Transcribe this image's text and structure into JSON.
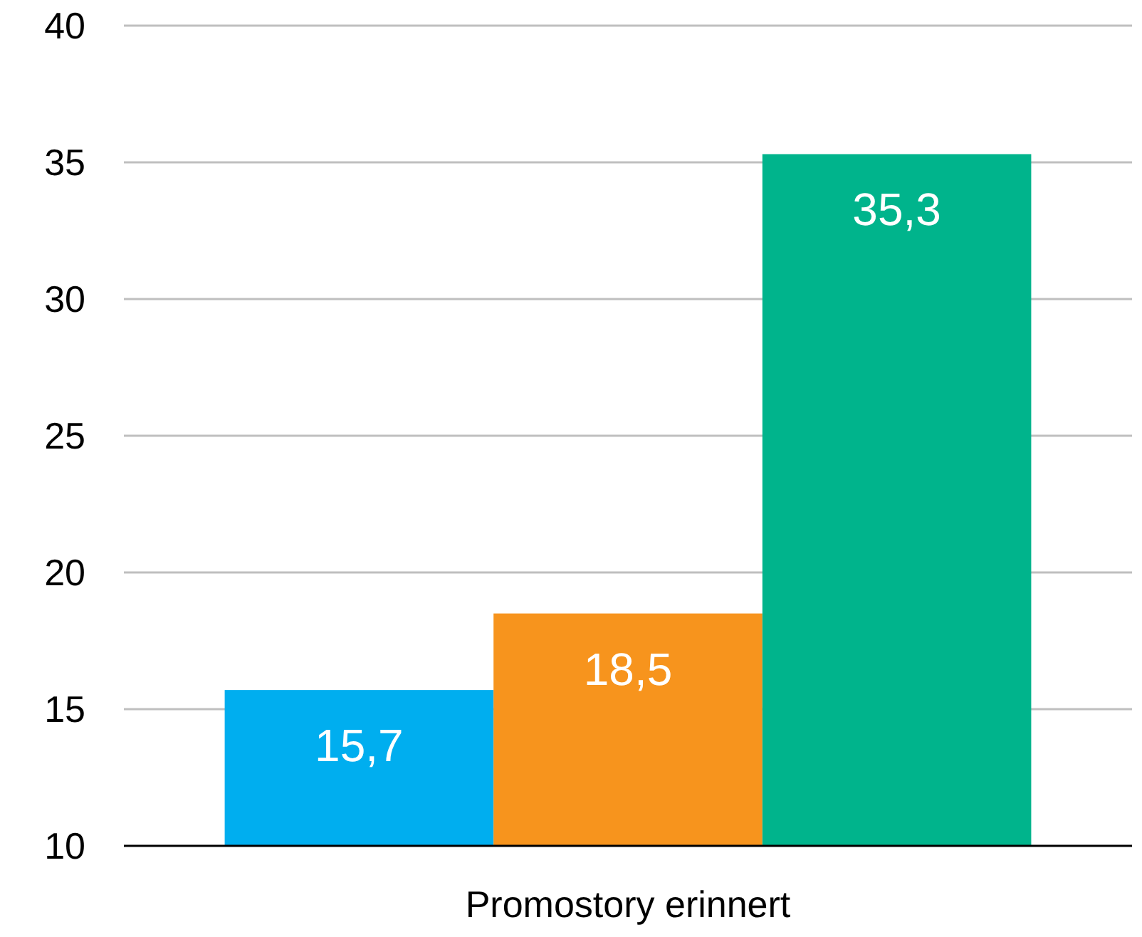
{
  "chart_data": {
    "type": "bar",
    "categories": [
      "Promostory erinnert"
    ],
    "series": [
      {
        "color": "#00aeef",
        "values": [
          15.7
        ],
        "value_labels": [
          "15,7"
        ]
      },
      {
        "color": "#f7941d",
        "values": [
          18.5
        ],
        "value_labels": [
          "18,5"
        ]
      },
      {
        "color": "#00b48c",
        "values": [
          35.3
        ],
        "value_labels": [
          "35,3"
        ]
      }
    ],
    "ylim": [
      10,
      40
    ],
    "yticks": [
      10,
      15,
      20,
      25,
      30,
      35,
      40
    ],
    "grid": "y"
  }
}
